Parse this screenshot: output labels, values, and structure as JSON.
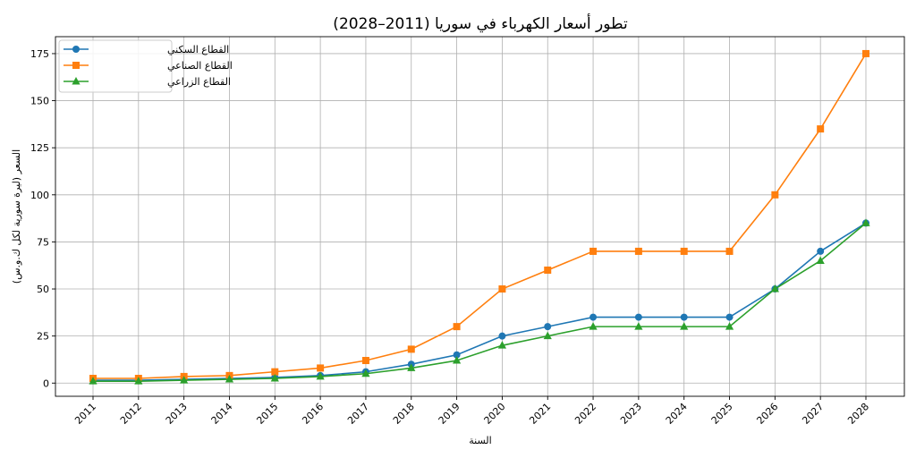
{
  "chart_data": {
    "type": "line",
    "title": "تطور أسعار الكهرباء في سوريا (2011–2028)",
    "xlabel": "السنة",
    "ylabel": "السعر (ليرة سورية لكل ك.و.س)",
    "x": [
      2011,
      2012,
      2013,
      2014,
      2015,
      2016,
      2017,
      2018,
      2019,
      2020,
      2021,
      2022,
      2023,
      2024,
      2025,
      2026,
      2027,
      2028
    ],
    "yticks": [
      0,
      25,
      50,
      75,
      100,
      125,
      150,
      175
    ],
    "ylim": [
      -7,
      184
    ],
    "grid": true,
    "legend_position": "top-left",
    "series": [
      {
        "name": "القطاع السكني",
        "color": "#1f77b4",
        "marker": "circle",
        "values": [
          1.5,
          1.5,
          2,
          2.5,
          3,
          4,
          6,
          10,
          15,
          25,
          30,
          35,
          35,
          35,
          35,
          50,
          70,
          85
        ]
      },
      {
        "name": "القطاع الصناعي",
        "color": "#ff7f0e",
        "marker": "square",
        "values": [
          2.5,
          2.5,
          3.5,
          4,
          6,
          8,
          12,
          18,
          30,
          50,
          60,
          70,
          70,
          70,
          70,
          100,
          135,
          175
        ]
      },
      {
        "name": "القطاع الزراعي",
        "color": "#2ca02c",
        "marker": "triangle",
        "values": [
          1,
          1,
          1.5,
          2,
          2.5,
          3.5,
          5,
          8,
          12,
          20,
          25,
          30,
          30,
          30,
          30,
          50,
          65,
          85
        ]
      }
    ]
  }
}
